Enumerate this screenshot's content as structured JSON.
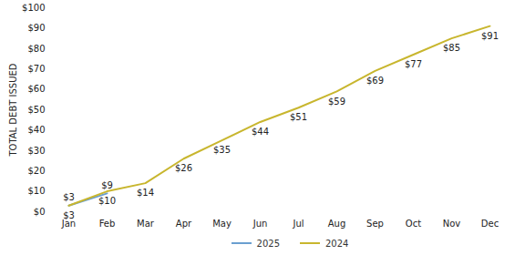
{
  "chart_data": {
    "type": "line",
    "ylabel": "TOTAL DEBT ISSUED",
    "categories": [
      "Jan",
      "Feb",
      "Mar",
      "Apr",
      "May",
      "Jun",
      "Jul",
      "Aug",
      "Sep",
      "Oct",
      "Nov",
      "Dec"
    ],
    "series": [
      {
        "name": "2025",
        "color": "#6a9fd0",
        "values": [
          3,
          9,
          null,
          null,
          null,
          null,
          null,
          null,
          null,
          null,
          null,
          null
        ],
        "value_labels": [
          "$3",
          "$9",
          null,
          null,
          null,
          null,
          null,
          null,
          null,
          null,
          null,
          null
        ]
      },
      {
        "name": "2024",
        "color": "#c8b62e",
        "values": [
          3,
          10,
          14,
          26,
          35,
          44,
          51,
          59,
          69,
          77,
          85,
          91
        ],
        "value_labels": [
          "$3",
          "$10",
          "$14",
          "$26",
          "$35",
          "$44",
          "$51",
          "$59",
          "$69",
          "$77",
          "$85",
          "$91"
        ]
      }
    ],
    "ylim": [
      0,
      100
    ],
    "yticks": [
      {
        "value": 0,
        "label": "$0"
      },
      {
        "value": 10,
        "label": "$10"
      },
      {
        "value": 20,
        "label": "$20"
      },
      {
        "value": 30,
        "label": "$30"
      },
      {
        "value": 40,
        "label": "$40"
      },
      {
        "value": 50,
        "label": "$50"
      },
      {
        "value": 60,
        "label": "$60"
      },
      {
        "value": 70,
        "label": "$70"
      },
      {
        "value": 80,
        "label": "$80"
      },
      {
        "value": 90,
        "label": "$90"
      },
      {
        "value": 100,
        "label": "$100"
      }
    ],
    "grid": false,
    "legend": "bottom",
    "data_labels": true
  }
}
